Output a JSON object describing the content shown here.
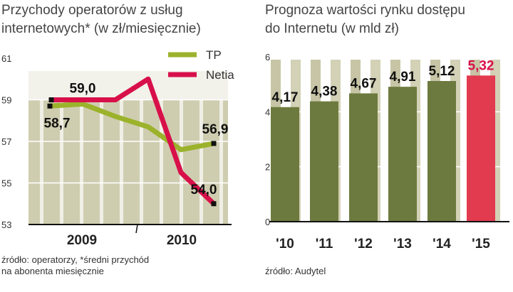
{
  "colors": {
    "tp": "#9bb22b",
    "netia": "#d8104a",
    "axis": "#111",
    "bar": "#6d7a3f",
    "bar_highlight": "#e23a4f",
    "bg": "#c8c6a8"
  },
  "left": {
    "title": "Przychody operatorów z usług\ninternetowych* (w zł/miesięcznie)",
    "source": "źródło: operatorzy, *średni przychód\nna abonenta miesięcznie"
  },
  "right": {
    "title": "Prognoza wartości rynku dostępu\ndo Internetu (w mld zł)",
    "source": "źródło: Audytel"
  },
  "chart_data": [
    {
      "type": "line",
      "title": "Przychody operatorów z usług internetowych* (w zł/miesięcznie)",
      "x": [
        0,
        1,
        2,
        3,
        4,
        5
      ],
      "xticks": [
        "2009",
        "2010"
      ],
      "ylim": [
        53,
        61
      ],
      "yticks": [
        "53",
        "55",
        "57",
        "59",
        "61"
      ],
      "series": [
        {
          "name": "TP",
          "values": [
            58.7,
            58.8,
            58.2,
            57.7,
            56.6,
            56.9
          ]
        },
        {
          "name": "Netia",
          "values": [
            59.0,
            59.0,
            59.0,
            60.0,
            55.5,
            54.0
          ]
        }
      ],
      "labels": {
        "tp_start": "58,7",
        "tp_end": "56,9",
        "netia_start": "59,0",
        "netia_end": "54,0"
      },
      "legend": [
        "TP",
        "Netia"
      ]
    },
    {
      "type": "bar",
      "title": "Prognoza wartości rynku dostępu do Internetu (w mld zł)",
      "categories": [
        "'10",
        "'11",
        "'12",
        "'13",
        "'14",
        "'15"
      ],
      "values": [
        4.17,
        4.38,
        4.67,
        4.91,
        5.12,
        5.32
      ],
      "value_labels": [
        "4,17",
        "4,38",
        "4,67",
        "4,91",
        "5,12",
        "5,32"
      ],
      "ylim": [
        0,
        6
      ],
      "yticks": [
        "0",
        "2",
        "4",
        "6"
      ]
    }
  ]
}
